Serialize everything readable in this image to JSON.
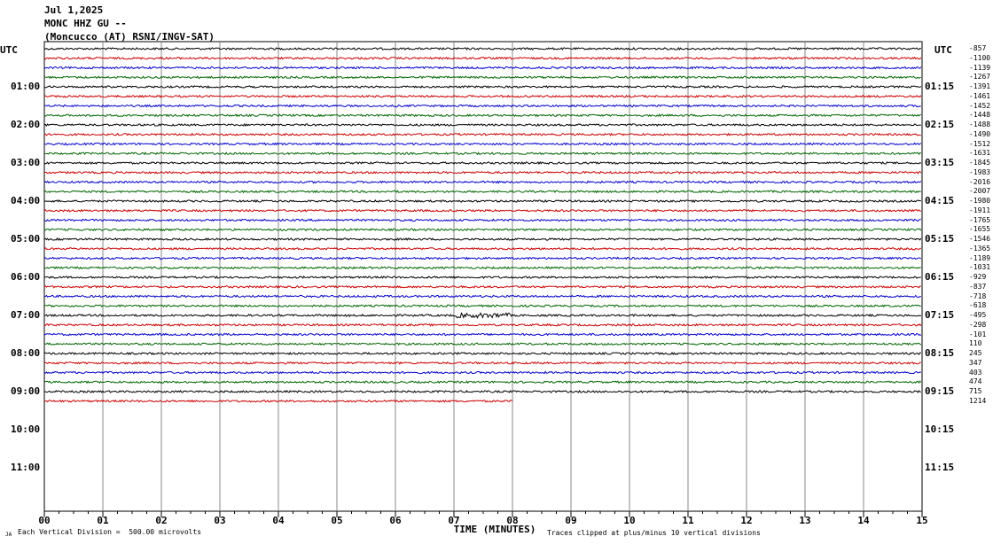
{
  "header": {
    "date": "Jul 1,2025",
    "station": "MONC HHZ GU --",
    "network": "(Moncucco (AT) RSNI/INGV-SAT)"
  },
  "footer": {
    "scale_note": "Each Vertical Division =  500.00 microvolts",
    "clip_note": "Traces clipped at plus/minus 10 vertical divisions",
    "corner_mark": "JA"
  },
  "chart_data": {
    "type": "line",
    "title": "MONC HHZ GU --",
    "xlabel": "TIME (MINUTES)",
    "ylabel": "UTC",
    "xlim": [
      0,
      15
    ],
    "x_ticks": [
      "00",
      "01",
      "02",
      "03",
      "04",
      "05",
      "06",
      "07",
      "08",
      "09",
      "10",
      "11",
      "12",
      "13",
      "14",
      "15"
    ],
    "left_axis_title": "UTC",
    "right_axis_title": "UTC",
    "left_hour_labels": [
      "01:00",
      "02:00",
      "03:00",
      "04:00",
      "05:00",
      "06:00",
      "07:00",
      "08:00",
      "09:00",
      "10:00",
      "11:00"
    ],
    "right_hour_labels": [
      "01:15",
      "02:15",
      "03:15",
      "04:15",
      "05:15",
      "06:15",
      "07:15",
      "08:15",
      "09:15",
      "10:15",
      "11:15"
    ],
    "trace_colors": [
      "#000000",
      "#cc0000",
      "#0000cc",
      "#006600"
    ],
    "trace_offsets": [
      "-857",
      "-1100",
      "-1139",
      "-1267",
      "-1391",
      "-1461",
      "-1452",
      "-1448",
      "-1488",
      "-1490",
      "-1512",
      "-1631",
      "-1845",
      "-1983",
      "-2016",
      "-2007",
      "-1980",
      "-1911",
      "-1765",
      "-1655",
      "-1546",
      "-1365",
      "-1189",
      "-1031",
      "-929",
      "-837",
      "-718",
      "-618",
      "-495",
      "-298",
      "-101",
      "110",
      "245",
      "347",
      "403",
      "474",
      "715",
      "1214"
    ],
    "last_trace_end_minute": 8.0,
    "grid": true
  }
}
